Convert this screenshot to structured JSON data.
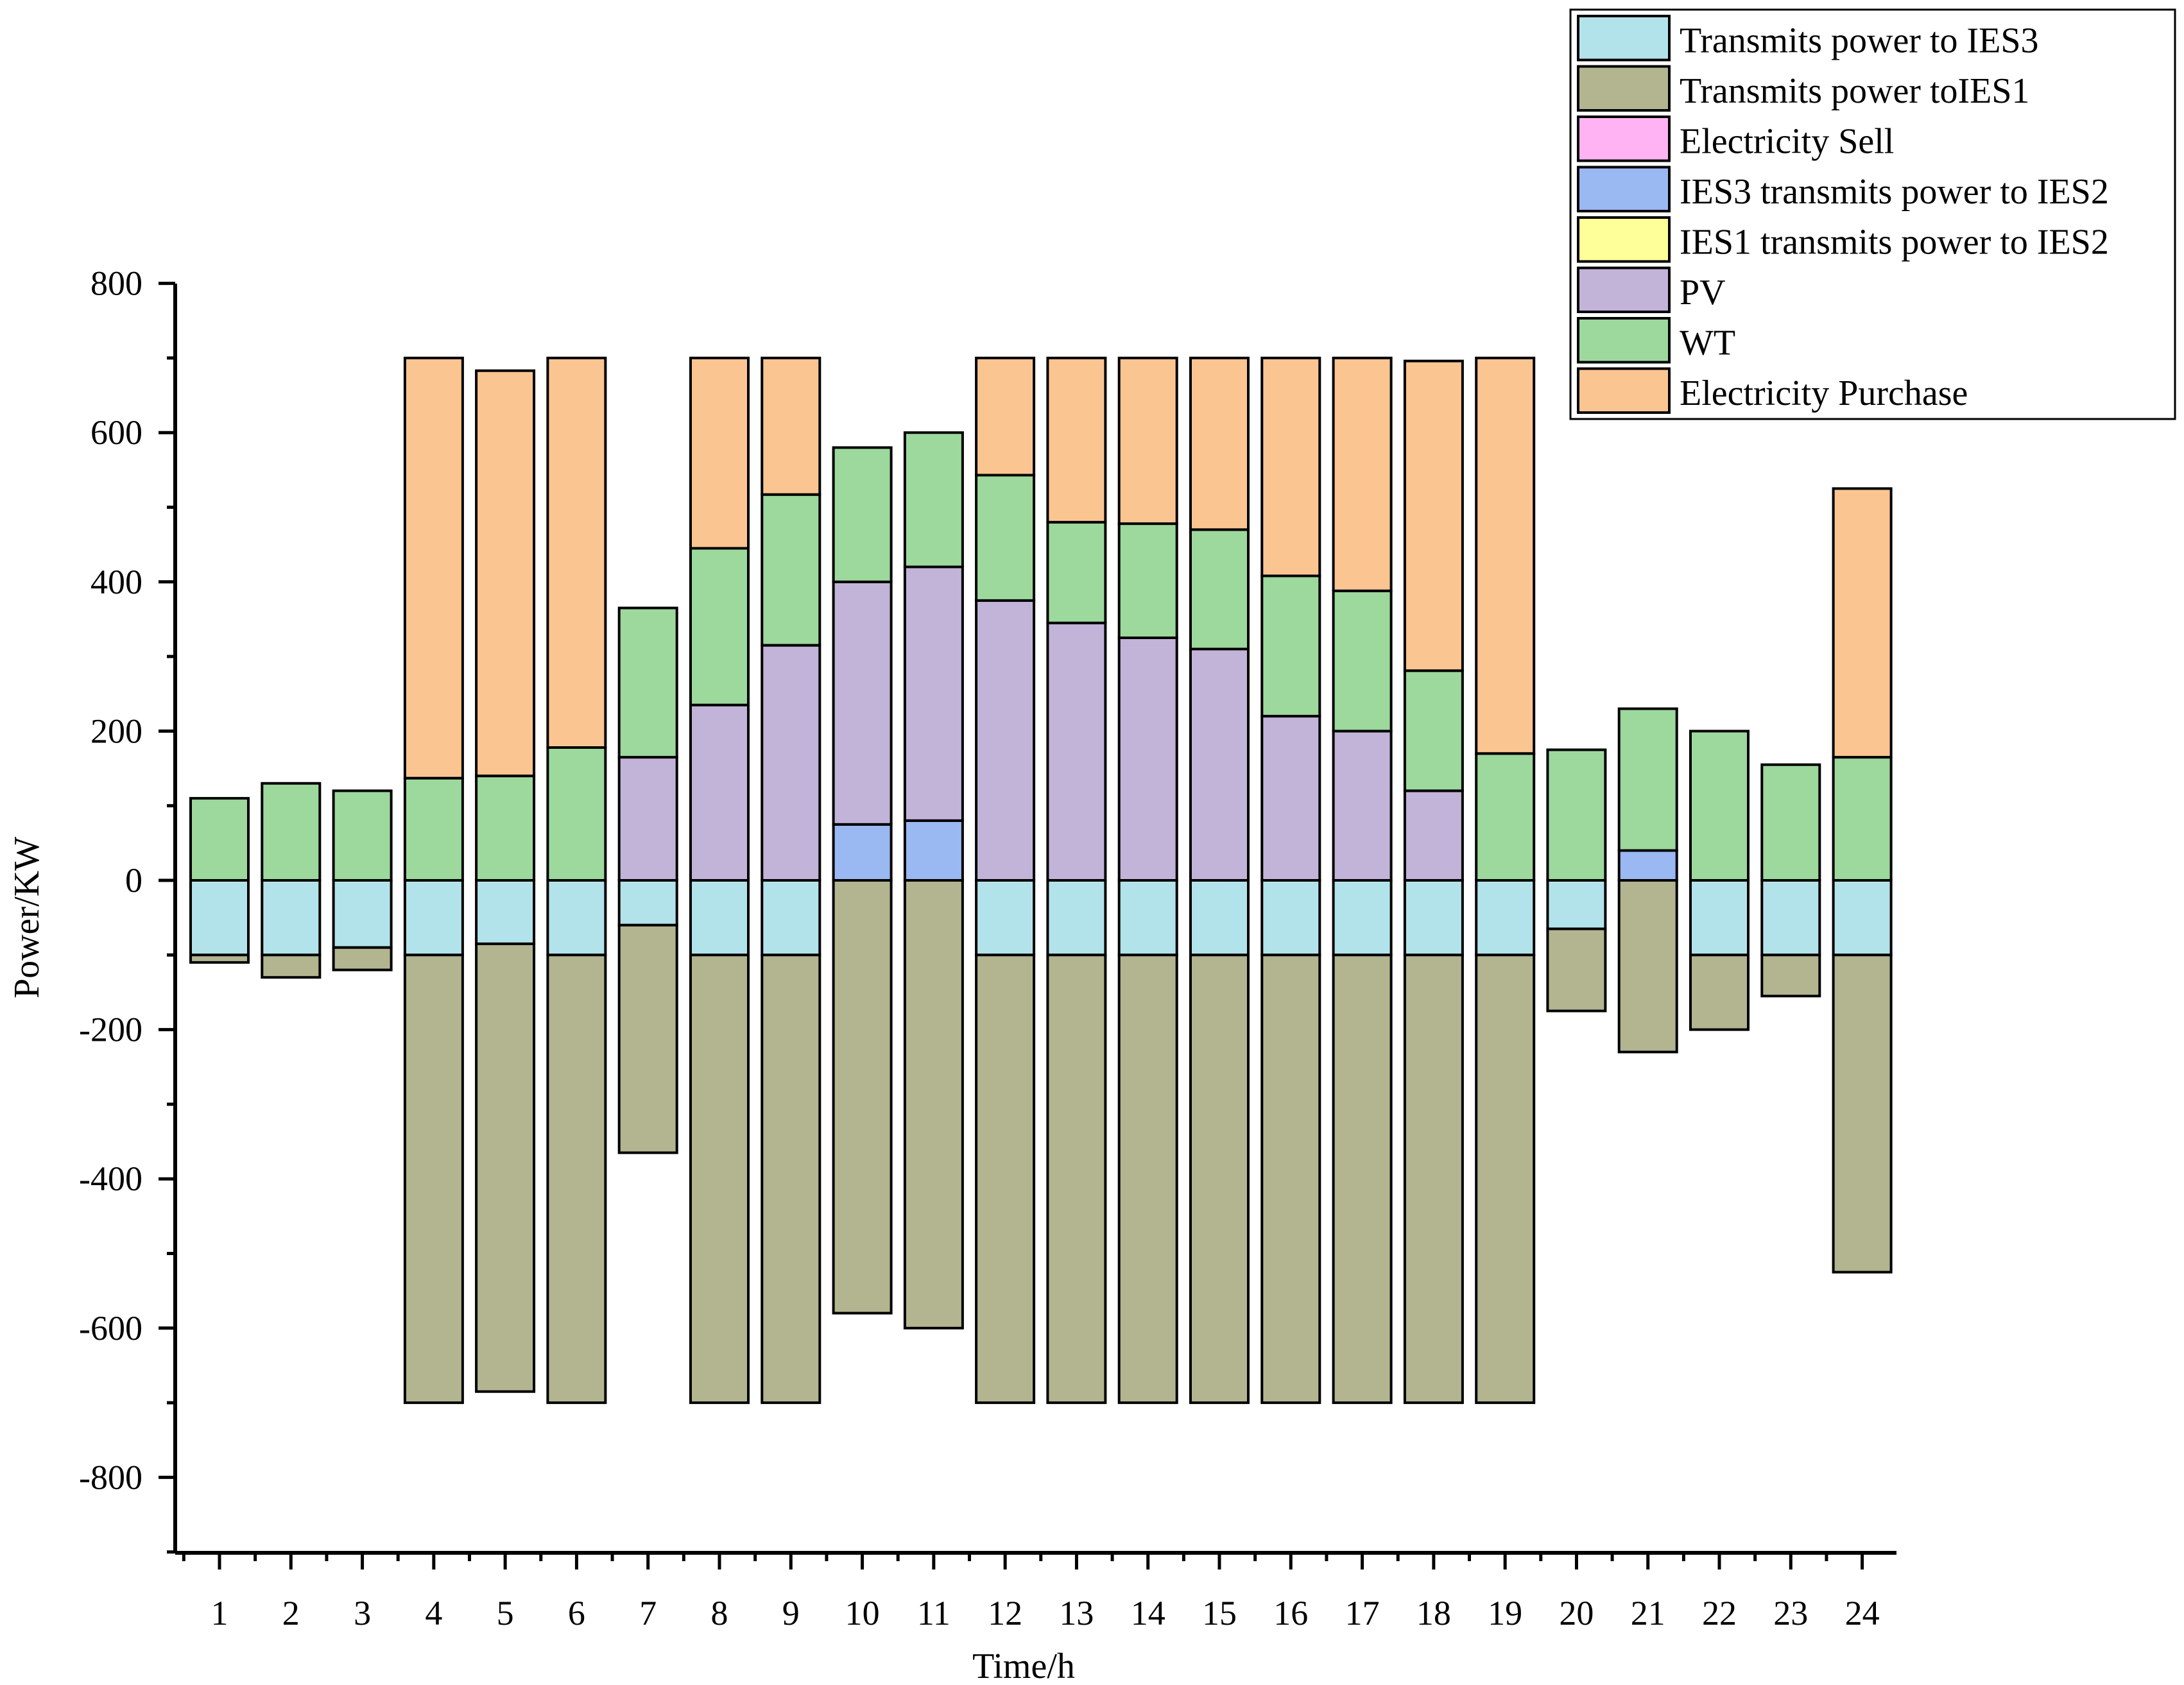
{
  "chart_data": {
    "type": "bar",
    "stacked": true,
    "title": "",
    "xlabel": "Time/h",
    "ylabel": "Power/KW",
    "ylim": [
      -900,
      800
    ],
    "y_ticks": [
      -800,
      -600,
      -400,
      -200,
      0,
      200,
      400,
      600,
      800
    ],
    "y_tick_labels": [
      "-800",
      "-600",
      "-400",
      "-200",
      "0",
      "200",
      "400",
      "600",
      "800"
    ],
    "categories": [
      "1",
      "2",
      "3",
      "4",
      "5",
      "6",
      "7",
      "8",
      "9",
      "10",
      "11",
      "12",
      "13",
      "14",
      "15",
      "16",
      "17",
      "18",
      "19",
      "20",
      "21",
      "22",
      "23",
      "24"
    ],
    "legend_position": "top-right",
    "series": [
      {
        "name": "Transmits power to IES3",
        "color": "#b3e3ea",
        "values": [
          -100,
          -100,
          -90,
          -100,
          -85,
          -100,
          -60,
          -100,
          -100,
          0,
          0,
          -100,
          -100,
          -100,
          -100,
          -100,
          -100,
          -100,
          -100,
          -65,
          0,
          -100,
          -100,
          -100
        ]
      },
      {
        "name": "Transmits power toIES1",
        "color": "#b2b58f",
        "values": [
          -10,
          -30,
          -30,
          -600,
          -600,
          -600,
          -305,
          -600,
          -600,
          -580,
          -600,
          -600,
          -600,
          -600,
          -600,
          -600,
          -600,
          -600,
          -600,
          -110,
          -230,
          -100,
          -55,
          -425
        ]
      },
      {
        "name": "Electricity Sell",
        "color": "#ffb3f2",
        "values": [
          0,
          0,
          0,
          0,
          0,
          0,
          0,
          0,
          0,
          0,
          0,
          0,
          0,
          0,
          0,
          0,
          0,
          0,
          0,
          0,
          0,
          0,
          0,
          0
        ]
      },
      {
        "name": "IES3  transmits power to IES2",
        "color": "#9ab8f2",
        "values": [
          0,
          0,
          0,
          0,
          0,
          0,
          0,
          0,
          0,
          75,
          80,
          0,
          0,
          0,
          0,
          0,
          0,
          0,
          0,
          0,
          40,
          0,
          0,
          0
        ]
      },
      {
        "name": "IES1   transmits power to IES2",
        "color": "#ffff99",
        "values": [
          0,
          0,
          0,
          0,
          0,
          0,
          0,
          0,
          0,
          0,
          0,
          0,
          0,
          0,
          0,
          0,
          0,
          0,
          0,
          0,
          0,
          0,
          0,
          0
        ]
      },
      {
        "name": "PV",
        "color": "#c2b3d8",
        "values": [
          0,
          0,
          0,
          0,
          0,
          0,
          165,
          235,
          315,
          325,
          340,
          375,
          345,
          325,
          310,
          220,
          200,
          120,
          0,
          0,
          0,
          0,
          0,
          0
        ]
      },
      {
        "name": "WT",
        "color": "#9dd89d",
        "values": [
          110,
          130,
          120,
          137,
          140,
          178,
          200,
          210,
          202,
          180,
          180,
          168,
          135,
          153,
          160,
          188,
          188,
          161,
          170,
          175,
          190,
          200,
          155,
          165
        ]
      },
      {
        "name": "Electricity Purchase",
        "color": "#fbc592",
        "values": [
          0,
          0,
          0,
          563,
          543,
          522,
          0,
          255,
          183,
          0,
          0,
          157,
          220,
          222,
          230,
          292,
          312,
          415,
          530,
          0,
          0,
          0,
          0,
          360
        ]
      }
    ],
    "legend_order": [
      0,
      1,
      2,
      3,
      4,
      5,
      6,
      7
    ]
  }
}
